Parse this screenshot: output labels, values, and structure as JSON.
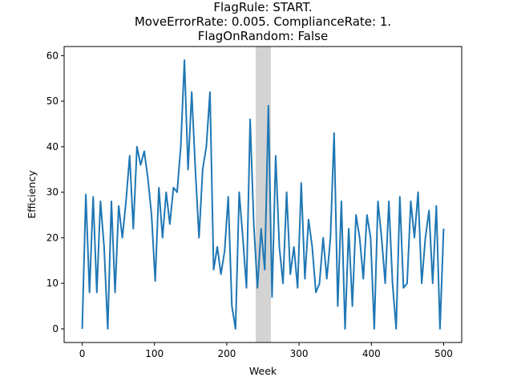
{
  "chart_data": {
    "type": "line",
    "title_lines": [
      "FlagRule: START.",
      "MoveErrorRate: 0.005. ComplianceRate: 1.",
      "FlagOnRandom: False"
    ],
    "xlabel": "Week",
    "ylabel": "Efficiency",
    "xlim": [
      -25,
      525
    ],
    "ylim": [
      -3,
      62
    ],
    "xticks": [
      0,
      100,
      200,
      300,
      400,
      500
    ],
    "yticks": [
      0,
      10,
      20,
      30,
      40,
      50,
      60
    ],
    "shaded_region": {
      "x_start": 240,
      "x_end": 261,
      "color": "#d3d3d3"
    },
    "line_color": "#1f77b4",
    "series": [
      {
        "x_start": 0,
        "x_step": 1,
        "values": [
          0,
          29.5,
          8,
          29,
          8,
          28,
          18,
          0,
          28,
          8,
          27,
          20,
          28,
          38,
          22,
          40,
          36,
          39,
          33,
          25,
          10.5,
          31,
          20,
          30,
          23,
          31,
          30,
          40,
          59,
          35,
          52,
          35,
          20,
          35,
          40,
          52,
          13,
          18,
          12,
          17,
          29,
          5,
          0,
          30,
          20,
          9,
          46,
          23,
          9,
          22,
          13,
          49,
          7,
          38,
          18,
          10,
          30,
          12,
          18,
          9,
          32,
          11,
          24,
          18,
          8,
          10,
          20,
          11,
          20,
          43,
          5,
          28,
          0,
          22,
          5,
          25,
          20,
          11,
          25,
          20,
          0,
          28,
          20,
          10,
          28,
          10,
          0,
          29,
          9,
          10,
          28,
          20,
          30,
          10,
          20,
          26,
          10,
          27,
          0,
          22
        ]
      }
    ]
  }
}
